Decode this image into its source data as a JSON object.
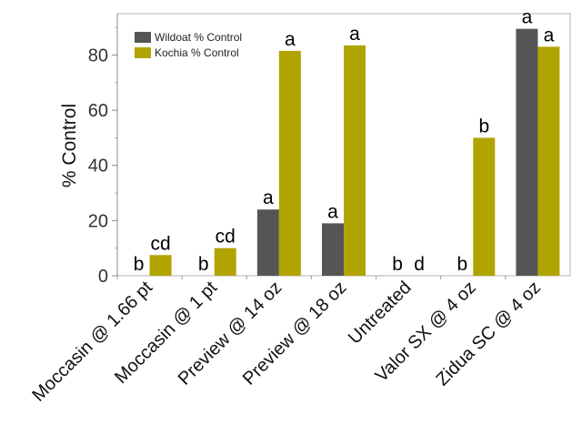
{
  "chart_data": {
    "type": "bar",
    "categories": [
      "Moccasin @ 1.66 pt",
      "Moccasin @ 1 pt",
      "Preview @ 14 oz",
      "Preview @ 18 oz",
      "Untreated",
      "Valor SX @ 4 oz",
      "Zidua SC @ 4 oz"
    ],
    "series": [
      {
        "name": "Wildoat % Control",
        "color": "#555555",
        "values": [
          0,
          0,
          24,
          19,
          0,
          0,
          89.5
        ],
        "labels": [
          "b",
          "b",
          "a",
          "a",
          "b",
          "b",
          "a"
        ]
      },
      {
        "name": "Kochia % Control",
        "color": "#b2a400",
        "values": [
          7.5,
          10,
          81.5,
          83.5,
          0,
          50,
          83
        ],
        "labels": [
          "cd",
          "cd",
          "a",
          "a",
          "d",
          "b",
          "a"
        ]
      }
    ],
    "title": "",
    "xlabel": "",
    "ylabel": "% Control",
    "ylim": [
      0,
      95
    ],
    "yticks": [
      0,
      20,
      40,
      60,
      80
    ],
    "grid": false,
    "legend_position": "top-left"
  }
}
